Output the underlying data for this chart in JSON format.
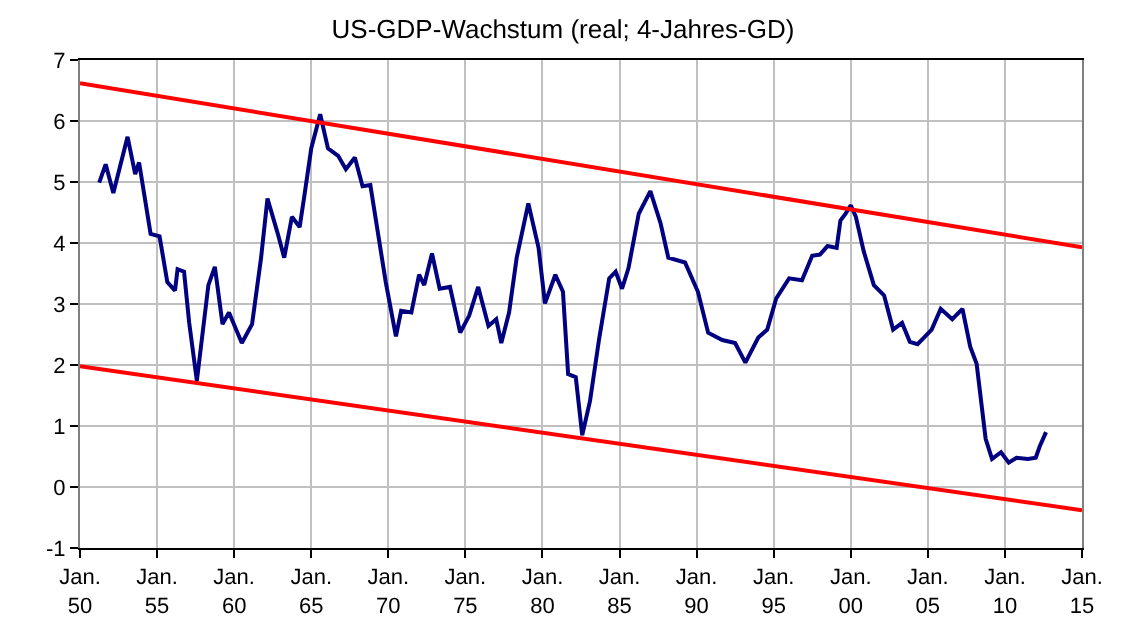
{
  "chart_data": {
    "type": "line",
    "title": "US-GDP-Wachstum (real; 4-Jahres-GD)",
    "xlim": [
      "1950-01",
      "2015-01"
    ],
    "xticks": [
      {
        "value": "1950-01",
        "label": "Jan.\n50"
      },
      {
        "value": "1955-01",
        "label": "Jan.\n55"
      },
      {
        "value": "1960-01",
        "label": "Jan.\n60"
      },
      {
        "value": "1965-01",
        "label": "Jan.\n65"
      },
      {
        "value": "1970-01",
        "label": "Jan.\n70"
      },
      {
        "value": "1975-01",
        "label": "Jan.\n75"
      },
      {
        "value": "1980-01",
        "label": "Jan.\n80"
      },
      {
        "value": "1985-01",
        "label": "Jan.\n85"
      },
      {
        "value": "1990-01",
        "label": "Jan.\n90"
      },
      {
        "value": "1995-01",
        "label": "Jan.\n95"
      },
      {
        "value": "2000-01",
        "label": "Jan.\n00"
      },
      {
        "value": "2005-01",
        "label": "Jan.\n05"
      },
      {
        "value": "2010-01",
        "label": "Jan.\n10"
      },
      {
        "value": "2015-01",
        "label": "Jan.\n15"
      }
    ],
    "ylim": [
      -1,
      7
    ],
    "yticks": [
      -1,
      0,
      1,
      2,
      3,
      4,
      5,
      6,
      7
    ],
    "grid": true,
    "marker": "none",
    "line_style": "solid",
    "series": [
      {
        "color": "#000080",
        "x": [
          "1951-04",
          "1951-09",
          "1952-03",
          "1953-02",
          "1953-08",
          "1953-11",
          "1954-08",
          "1955-03",
          "1955-09",
          "1956-03",
          "1956-05",
          "1956-10",
          "1957-02",
          "1957-08",
          "1958-05",
          "1958-10",
          "1959-04",
          "1959-09",
          "1960-07",
          "1961-03",
          "1961-10",
          "1962-03",
          "1962-11",
          "1963-04",
          "1963-10",
          "1964-04",
          "1964-08",
          "1965-01",
          "1965-08",
          "1966-02",
          "1966-10",
          "1967-04",
          "1967-11",
          "1968-05",
          "1968-11",
          "1969-11",
          "1970-07",
          "1970-11",
          "1971-07",
          "1972-01",
          "1972-05",
          "1972-11",
          "1973-05",
          "1974-01",
          "1974-09",
          "1975-04",
          "1975-11",
          "1976-07",
          "1977-01",
          "1977-05",
          "1977-11",
          "1978-05",
          "1979-02",
          "1979-10",
          "1980-03",
          "1980-11",
          "1981-05",
          "1981-09",
          "1982-03",
          "1982-08",
          "1983-02",
          "1983-09",
          "1984-05",
          "1984-10",
          "1985-03",
          "1985-08",
          "1986-04",
          "1987-01",
          "1987-09",
          "1988-03",
          "1989-04",
          "1990-02",
          "1990-10",
          "1991-09",
          "1992-07",
          "1993-03",
          "1994-01",
          "1994-08",
          "1995-03",
          "1996-01",
          "1996-11",
          "1997-07",
          "1998-01",
          "1998-07",
          "1999-02",
          "1999-05",
          "1999-09",
          "2000-01",
          "2000-05",
          "2000-11",
          "2001-07",
          "2002-03",
          "2002-10",
          "2003-05",
          "2003-11",
          "2004-05",
          "2004-10",
          "2005-04",
          "2005-11",
          "2006-08",
          "2007-04",
          "2007-10",
          "2008-03",
          "2008-10",
          "2009-03",
          "2009-10",
          "2010-04",
          "2010-10",
          "2011-07",
          "2012-01",
          "2012-04",
          "2012-09"
        ],
        "values": [
          4.99,
          5.29,
          4.82,
          5.74,
          5.13,
          5.32,
          4.15,
          4.11,
          3.36,
          3.22,
          3.57,
          3.53,
          2.69,
          1.74,
          3.31,
          3.61,
          2.67,
          2.86,
          2.36,
          2.67,
          3.76,
          4.73,
          4.15,
          3.76,
          4.43,
          4.26,
          4.82,
          5.55,
          6.11,
          5.55,
          5.43,
          5.21,
          5.4,
          4.93,
          4.95,
          3.36,
          2.47,
          2.89,
          2.86,
          3.48,
          3.31,
          3.83,
          3.25,
          3.28,
          2.53,
          2.81,
          3.28,
          2.64,
          2.75,
          2.36,
          2.86,
          3.76,
          4.65,
          3.92,
          3.01,
          3.48,
          3.2,
          1.85,
          1.8,
          0.85,
          1.41,
          2.41,
          3.42,
          3.53,
          3.25,
          3.59,
          4.48,
          4.85,
          4.32,
          3.76,
          3.68,
          3.2,
          2.53,
          2.41,
          2.36,
          2.04,
          2.45,
          2.58,
          3.09,
          3.42,
          3.39,
          3.79,
          3.81,
          3.95,
          3.92,
          4.37,
          4.48,
          4.62,
          4.43,
          3.87,
          3.31,
          3.14,
          2.58,
          2.69,
          2.38,
          2.34,
          2.45,
          2.58,
          2.92,
          2.75,
          2.92,
          2.3,
          2.02,
          0.79,
          0.46,
          0.57,
          0.4,
          0.48,
          0.46,
          0.48,
          0.66,
          0.9
        ]
      },
      {
        "color": "#ff0000",
        "x": [
          "1950-01",
          "2015-01"
        ],
        "values": [
          6.62,
          3.93
        ]
      },
      {
        "color": "#ff0000",
        "x": [
          "1950-01",
          "2015-01"
        ],
        "values": [
          1.98,
          -0.38
        ]
      }
    ]
  }
}
